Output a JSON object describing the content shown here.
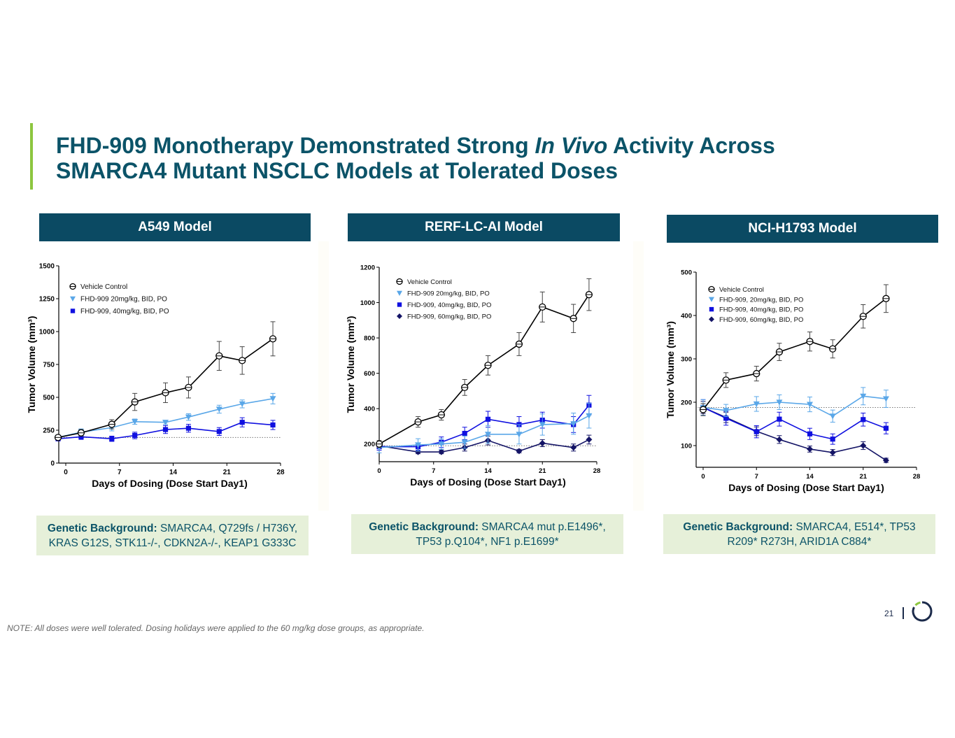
{
  "slide": {
    "title_part1": "FHD-909 Monotherapy Demonstrated Strong ",
    "title_italic": "In Vivo",
    "title_part2": " Activity Across",
    "title_line2": "SMARCA4 Mutant NSCLC Models at Tolerated Doses",
    "note": "NOTE: All doses were well tolerated. Dosing holidays were applied to the 60 mg/kg dose groups, as appropriate.",
    "page_number": "21",
    "colors": {
      "title": "#0b5368",
      "accent": "#8dc63f",
      "header_bg": "#0b4a63",
      "genetic_bg": "#e6f0d9"
    }
  },
  "panels": [
    {
      "header": "A549 Model",
      "genetic_label": "Genetic Background:",
      "genetic_text": " SMARCA4, Q729fs / H736Y, KRAS G12S, STK11-/-, CDKN2A-/-, KEAP1 G333C"
    },
    {
      "header": "RERF-LC-AI Model",
      "genetic_label": "Genetic Background:",
      "genetic_text": " SMARCA4 mut p.E1496*, TP53 p.Q104*, NF1 p.E1699*"
    },
    {
      "header": "NCI-H1793 Model",
      "genetic_label": "Genetic Background:",
      "genetic_text": " SMARCA4, E514*, TP53 R209* R273H, ARID1A C884*"
    }
  ],
  "chart_data": [
    {
      "type": "line",
      "title": "A549 Model",
      "xlabel": "Days of Dosing (Dose Start Day1)",
      "ylabel": "Tumor Volume (mm³)",
      "xlim": [
        -1,
        28
      ],
      "ylim": [
        0,
        1500
      ],
      "xticks": [
        0,
        7,
        14,
        21,
        28
      ],
      "yticks": [
        0,
        250,
        500,
        750,
        1000,
        1250,
        1500
      ],
      "baseline": 195,
      "legend_position": "top-left",
      "series": [
        {
          "name": "Vehicle Control",
          "marker": "circle-open",
          "color": "#000000",
          "x": [
            -1,
            2,
            6,
            9,
            13,
            16,
            20,
            23,
            27
          ],
          "y": [
            195,
            230,
            295,
            465,
            535,
            575,
            815,
            780,
            945
          ],
          "err": [
            15,
            25,
            35,
            65,
            75,
            80,
            110,
            105,
            130
          ]
        },
        {
          "name": "FHD-909 20mg/kg, BID, PO",
          "marker": "triangle-down",
          "color": "#5aa7e8",
          "x": [
            -1,
            2,
            6,
            9,
            13,
            16,
            20,
            23,
            27
          ],
          "y": [
            195,
            235,
            270,
            315,
            310,
            350,
            410,
            450,
            490
          ],
          "err": [
            15,
            25,
            25,
            20,
            15,
            25,
            30,
            30,
            40
          ]
        },
        {
          "name": "FHD-909, 40mg/kg, BID, PO",
          "marker": "square",
          "color": "#1010e0",
          "x": [
            -1,
            2,
            6,
            9,
            13,
            16,
            20,
            23,
            27
          ],
          "y": [
            185,
            200,
            185,
            210,
            255,
            265,
            240,
            310,
            290
          ],
          "err": [
            15,
            20,
            20,
            25,
            30,
            30,
            30,
            35,
            35
          ]
        }
      ]
    },
    {
      "type": "line",
      "title": "RERF-LC-AI Model",
      "xlabel": "Days of Dosing (Dose Start Day1)",
      "ylabel": "Tumor Volume (mm³)",
      "xlim": [
        0,
        28
      ],
      "ylim": [
        100,
        1200
      ],
      "xticks": [
        0,
        7,
        14,
        21,
        28
      ],
      "yticks": [
        200,
        400,
        600,
        800,
        1000,
        1200
      ],
      "baseline": 190,
      "legend_position": "top-left",
      "series": [
        {
          "name": "Vehicle Control",
          "marker": "circle-open",
          "color": "#000000",
          "x": [
            0,
            5,
            8,
            11,
            14,
            18,
            21,
            25,
            27
          ],
          "y": [
            200,
            325,
            365,
            520,
            645,
            765,
            975,
            910,
            1045
          ],
          "err": [
            20,
            30,
            30,
            45,
            55,
            65,
            85,
            80,
            90
          ]
        },
        {
          "name": "FHD-909 20mg/kg, BID, PO",
          "marker": "triangle-down",
          "color": "#5aa7e8",
          "x": [
            0,
            5,
            8,
            11,
            14,
            18,
            21,
            25,
            27
          ],
          "y": [
            180,
            195,
            200,
            210,
            255,
            255,
            310,
            315,
            360
          ],
          "err": [
            30,
            35,
            30,
            35,
            50,
            55,
            60,
            60,
            70
          ]
        },
        {
          "name": "FHD-909, 40mg/kg, BID, PO",
          "marker": "square",
          "color": "#1010e0",
          "x": [
            0,
            5,
            8,
            11,
            14,
            18,
            21,
            25,
            27
          ],
          "y": [
            185,
            185,
            210,
            260,
            340,
            310,
            335,
            310,
            420
          ],
          "err": [
            20,
            20,
            30,
            35,
            45,
            45,
            45,
            45,
            55
          ]
        },
        {
          "name": "FHD-909, 60mg/kg, BID, PO",
          "marker": "diamond",
          "color": "#141466",
          "x": [
            0,
            5,
            8,
            11,
            14,
            18,
            21,
            25,
            27
          ],
          "y": [
            190,
            155,
            155,
            180,
            220,
            160,
            205,
            180,
            225
          ],
          "err": [
            15,
            10,
            10,
            20,
            25,
            10,
            20,
            20,
            25
          ]
        }
      ]
    },
    {
      "type": "line",
      "title": "NCI-H1793 Model",
      "xlabel": "Days of Dosing (Dose Start Day1)",
      "ylabel": "Tumor Volume (mm³)",
      "xlim": [
        0,
        28
      ],
      "ylim": [
        50,
        500
      ],
      "xticks": [
        0,
        7,
        14,
        21,
        28
      ],
      "yticks": [
        100,
        200,
        300,
        400,
        500
      ],
      "baseline": 188,
      "legend_position": "top-left",
      "series": [
        {
          "name": "Vehicle Control",
          "marker": "circle-open",
          "color": "#000000",
          "x": [
            0,
            3,
            7,
            10,
            14,
            17,
            21,
            24
          ],
          "y": [
            183,
            251,
            266,
            316,
            340,
            323,
            398,
            439
          ],
          "err": [
            14,
            17,
            17,
            20,
            22,
            21,
            27,
            32
          ]
        },
        {
          "name": "FHD-909, 20mg/kg, BID, PO",
          "marker": "triangle-down",
          "color": "#5aa7e8",
          "x": [
            0,
            3,
            7,
            10,
            14,
            17,
            21,
            24
          ],
          "y": [
            188,
            181,
            196,
            200,
            195,
            168,
            214,
            208
          ],
          "err": [
            18,
            14,
            17,
            17,
            17,
            14,
            20,
            20
          ]
        },
        {
          "name": "FHD-909, 40mg/kg, BID, PO",
          "marker": "square",
          "color": "#1010e0",
          "x": [
            0,
            3,
            7,
            10,
            14,
            17,
            21,
            24
          ],
          "y": [
            188,
            163,
            132,
            161,
            127,
            115,
            160,
            140
          ],
          "err": [
            18,
            16,
            14,
            16,
            13,
            12,
            15,
            13
          ]
        },
        {
          "name": "FHD-909, 60mg/kg, BID, PO",
          "marker": "diamond",
          "color": "#141466",
          "x": [
            0,
            3,
            7,
            10,
            14,
            17,
            21,
            24
          ],
          "y": [
            188,
            165,
            133,
            114,
            92,
            84,
            100,
            66
          ],
          "err": [
            14,
            12,
            10,
            9,
            7,
            7,
            9,
            5
          ]
        }
      ]
    }
  ]
}
